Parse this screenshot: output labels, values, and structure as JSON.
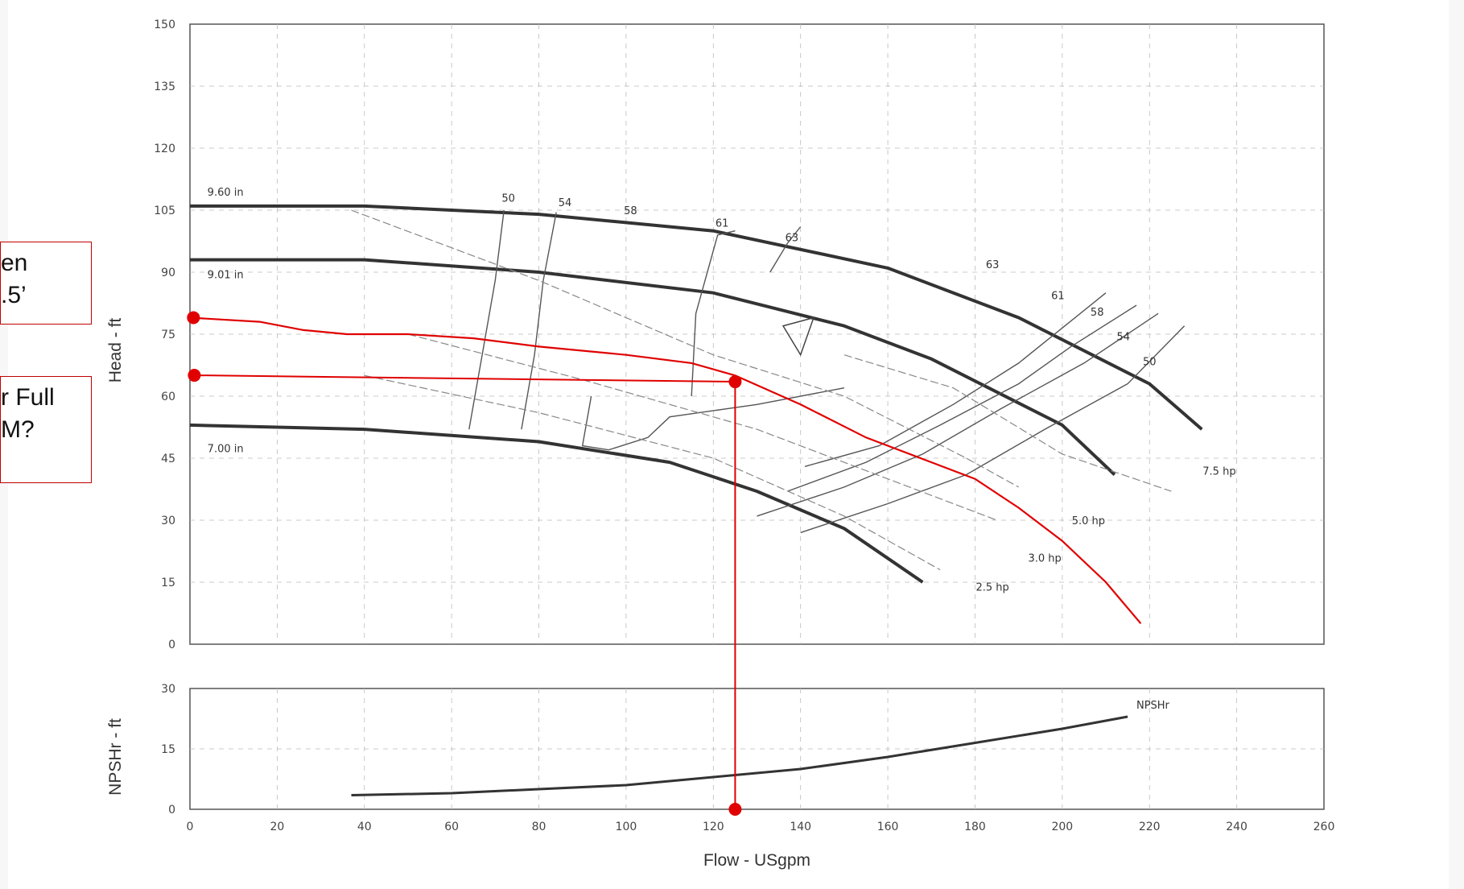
{
  "callouts": {
    "head_question": {
      "line1": "en",
      "line2": ".5’"
    },
    "flow_question": {
      "line1": "r Full",
      "line2": "M?"
    }
  },
  "colors": {
    "annotation": "#e00000",
    "curve": "#333333",
    "grid": "#bbbbbb"
  },
  "chart_data": [
    {
      "type": "line",
      "xlabel": "Flow - USgpm",
      "ylabel": "Head - ft",
      "xlim": [
        0,
        260
      ],
      "ylim": [
        0,
        150
      ],
      "x_ticks": [
        "0",
        "20",
        "40",
        "60",
        "80",
        "100",
        "120",
        "140",
        "160",
        "180",
        "200",
        "220",
        "240",
        "260"
      ],
      "y_ticks": [
        "0",
        "15",
        "30",
        "45",
        "60",
        "75",
        "90",
        "105",
        "120",
        "135",
        "150"
      ],
      "impeller_curves": [
        {
          "label": "9.60 in",
          "points": [
            [
              0,
              106
            ],
            [
              40,
              106
            ],
            [
              80,
              104
            ],
            [
              120,
              100
            ],
            [
              160,
              91
            ],
            [
              190,
              79
            ],
            [
              220,
              63
            ],
            [
              232,
              52
            ]
          ]
        },
        {
          "label": "9.01 in",
          "points": [
            [
              0,
              93
            ],
            [
              40,
              93
            ],
            [
              80,
              90
            ],
            [
              120,
              85
            ],
            [
              150,
              77
            ],
            [
              170,
              69
            ],
            [
              200,
              53
            ],
            [
              212,
              41
            ]
          ]
        },
        {
          "label": "7.00 in",
          "points": [
            [
              0,
              53
            ],
            [
              40,
              52
            ],
            [
              80,
              49
            ],
            [
              110,
              44
            ],
            [
              130,
              37
            ],
            [
              150,
              28
            ],
            [
              168,
              15
            ]
          ]
        }
      ],
      "efficiency_labels": [
        "50",
        "54",
        "58",
        "61",
        "63",
        "63",
        "61",
        "58",
        "54",
        "50"
      ],
      "power_labels": [
        "7.5 hp",
        "5.0 hp",
        "3.0 hp",
        "2.5 hp"
      ],
      "annotation_curve": [
        [
          0,
          79
        ],
        [
          16,
          78
        ],
        [
          26,
          76
        ],
        [
          36,
          75
        ],
        [
          50,
          75
        ],
        [
          65,
          74
        ],
        [
          80,
          72
        ],
        [
          100,
          70
        ],
        [
          115,
          68
        ],
        [
          125,
          65
        ],
        [
          140,
          58
        ],
        [
          155,
          50
        ],
        [
          170,
          44
        ],
        [
          180,
          40
        ],
        [
          190,
          33
        ],
        [
          200,
          25
        ],
        [
          210,
          15
        ],
        [
          218,
          5
        ]
      ],
      "operating_point": {
        "flow": 125,
        "head": 63.5
      }
    },
    {
      "type": "line",
      "xlabel": "",
      "ylabel": "NPSHr - ft",
      "xlim": [
        0,
        260
      ],
      "ylim": [
        0,
        30
      ],
      "y_ticks": [
        "0",
        "15",
        "30"
      ],
      "series": [
        {
          "name": "NPSHr",
          "points": [
            [
              37,
              3.5
            ],
            [
              60,
              4
            ],
            [
              80,
              5
            ],
            [
              100,
              6
            ],
            [
              120,
              8
            ],
            [
              140,
              10
            ],
            [
              160,
              13
            ],
            [
              180,
              16.5
            ],
            [
              200,
              20
            ],
            [
              215,
              23
            ]
          ]
        }
      ],
      "operating_point": {
        "flow": 125,
        "npshr": 0
      }
    }
  ]
}
